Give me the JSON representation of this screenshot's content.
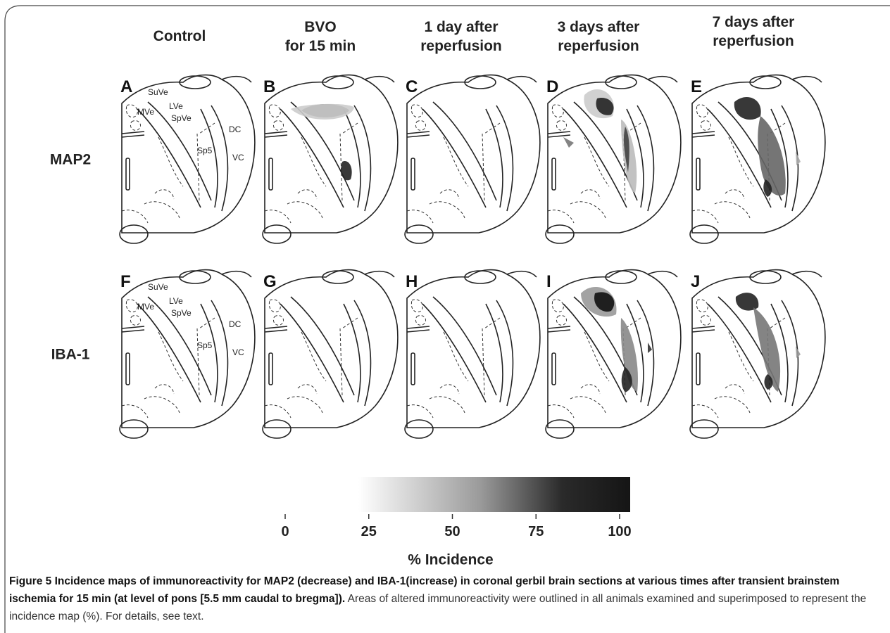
{
  "columns": [
    [
      "Control"
    ],
    [
      "BVO",
      "for 15 min"
    ],
    [
      "1 day after",
      "reperfusion"
    ],
    [
      "3 days after",
      "reperfusion"
    ],
    [
      "7 days after",
      "reperfusion"
    ]
  ],
  "rows": [
    {
      "label": "MAP2",
      "panels": [
        "A",
        "B",
        "C",
        "D",
        "E"
      ],
      "regions": [
        "SuVe",
        "LVe",
        "MVe",
        "SpVe",
        "Sp5",
        "DC",
        "VC"
      ]
    },
    {
      "label": "IBA-1",
      "panels": [
        "F",
        "G",
        "H",
        "I",
        "J"
      ],
      "regions": [
        "SuVe",
        "LVe",
        "MVe",
        "SpVe",
        "Sp5",
        "DC",
        "VC"
      ]
    }
  ],
  "colorbar": {
    "label": "% Incidence",
    "lim": [
      0,
      100
    ],
    "ticks": [
      0,
      25,
      50,
      75,
      100
    ]
  },
  "caption": {
    "bold": "Figure 5 Incidence maps of immunoreactivity for MAP2 (decrease) and IBA-1(increase) in coronal gerbil brain sections at various times after transient brainstem ischemia for 15 min (at level of pons [5.5 mm caudal to bregma]).",
    "text": "Areas of altered immunoreactivity were outlined in all animals examined and superimposed to represent the incidence map (%). For details, see text."
  }
}
